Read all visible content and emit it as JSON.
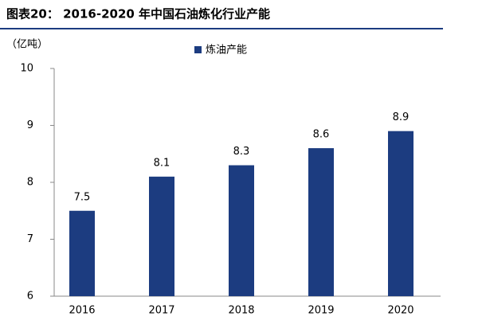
{
  "chart_data": {
    "type": "bar",
    "title": "图表20： 2016-2020 年中国石油炼化行业产能",
    "y_label": "（亿吨）",
    "categories": [
      "2016",
      "2017",
      "2018",
      "2019",
      "2020"
    ],
    "series": [
      {
        "name": "炼油产能",
        "color": "#1c3c80",
        "values": [
          7.5,
          8.1,
          8.3,
          8.6,
          8.9
        ]
      }
    ],
    "ylim": [
      6,
      10
    ],
    "yticks": [
      6,
      7,
      8,
      9,
      10
    ],
    "grid": false,
    "legend": "top"
  }
}
